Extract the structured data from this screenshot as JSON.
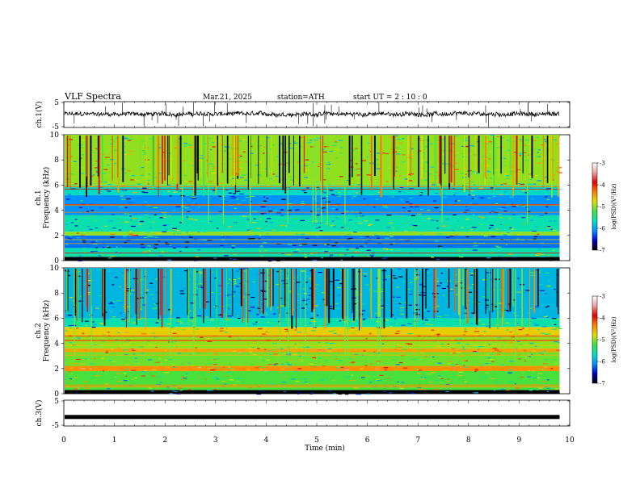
{
  "header": {
    "title": "VLF  Spectra",
    "date": "Mar.21, 2025",
    "station": "station=ATH",
    "start": "start  UT  =   2  : 10 : 0"
  },
  "chart_data": [
    {
      "type": "line",
      "name": "ch1-waveform",
      "ylabel": "ch.1(V)",
      "yticks": [
        "5",
        "-5"
      ],
      "ylim": [
        -5,
        5
      ],
      "xlim": [
        0,
        10
      ],
      "data_extent_min": 9.8,
      "baseline": 0.2,
      "color": "#000000"
    },
    {
      "type": "heatmap",
      "name": "ch1-spectrogram",
      "ylabel_top": "ch.1",
      "ylabel": "Frequency  (kHz)",
      "yticks": [
        "0",
        "2",
        "4",
        "6",
        "8",
        "10"
      ],
      "ylim": [
        0,
        10
      ],
      "xlim": [
        0,
        10
      ],
      "colorbar": {
        "label": "log(PSD)(V²/Hz)",
        "ticks": [
          "-3",
          "-4",
          "-5",
          "-6",
          "-7"
        ],
        "range": [
          -7,
          -3
        ],
        "colors": [
          "#000000",
          "#0000c8",
          "#0090ff",
          "#00e0c0",
          "#40e040",
          "#e0e000",
          "#ff8000",
          "#e00000",
          "#f0a0a0",
          "#ffffff"
        ]
      },
      "bands": [
        {
          "f": [
            0,
            0.3
          ],
          "level": -7
        },
        {
          "f": [
            0.3,
            1.0
          ],
          "level": -5.6
        },
        {
          "f": [
            1.0,
            2.0
          ],
          "level": -6.2
        },
        {
          "f": [
            2.0,
            2.3
          ],
          "level": -5.0
        },
        {
          "f": [
            2.3,
            3.6
          ],
          "level": -5.6
        },
        {
          "f": [
            3.6,
            5.2
          ],
          "level": -6.1
        },
        {
          "f": [
            5.2,
            6.0
          ],
          "level": -5.7
        },
        {
          "f": [
            6.0,
            10.0
          ],
          "level": -5.0
        }
      ]
    },
    {
      "type": "heatmap",
      "name": "ch2-spectrogram",
      "ylabel_top": "ch.2",
      "ylabel": "Frequency  (kHz)",
      "yticks": [
        "0",
        "2",
        "4",
        "6",
        "8",
        "10"
      ],
      "ylim": [
        0,
        10
      ],
      "xlim": [
        0,
        10
      ],
      "colorbar": {
        "label": "log(PSD)(V²/Hz)",
        "ticks": [
          "-3",
          "-4",
          "-5",
          "-6",
          "-7"
        ],
        "range": [
          -7,
          -3
        ]
      },
      "bands": [
        {
          "f": [
            0,
            0.3
          ],
          "level": -7
        },
        {
          "f": [
            0.3,
            1.8
          ],
          "level": -5.2
        },
        {
          "f": [
            1.8,
            2.2
          ],
          "level": -4.4
        },
        {
          "f": [
            2.2,
            3.3
          ],
          "level": -5.1
        },
        {
          "f": [
            3.3,
            3.6
          ],
          "level": -4.5
        },
        {
          "f": [
            3.6,
            4.6
          ],
          "level": -5.0
        },
        {
          "f": [
            4.6,
            5.3
          ],
          "level": -4.7
        },
        {
          "f": [
            5.3,
            6.0
          ],
          "level": -5.6
        },
        {
          "f": [
            6.0,
            10.0
          ],
          "level": -5.9
        }
      ]
    },
    {
      "type": "line",
      "name": "ch3-waveform",
      "ylabel": "ch.3(V)",
      "yticks": [
        "5",
        "-5"
      ],
      "ylim": [
        -5,
        5
      ],
      "xlim": [
        0,
        10
      ],
      "data_extent_min": 9.8,
      "baseline": -1.5,
      "color": "#000000"
    }
  ],
  "xaxis": {
    "label": "Time  (min)",
    "ticks": [
      "0",
      "1",
      "2",
      "3",
      "4",
      "5",
      "6",
      "7",
      "8",
      "9",
      "10"
    ]
  }
}
